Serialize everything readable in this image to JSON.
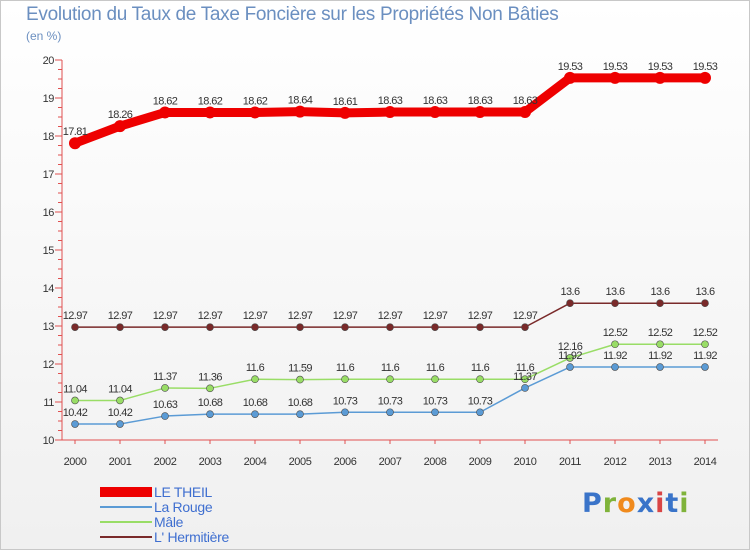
{
  "title": "Evolution du Taux de Taxe Foncière sur les Propriétés Non Bâties",
  "unit_label": "(en %)",
  "logo": {
    "text": "Proxiti",
    "letters": [
      "P",
      "r",
      "o",
      "x",
      "i",
      "t",
      "i"
    ],
    "colors": [
      "#3a74c9",
      "#7fb33a",
      "#f08a1c",
      "#3a74c9",
      "#d94545",
      "#3a74c9",
      "#7fb33a"
    ]
  },
  "chart_data": {
    "type": "line",
    "title": "Evolution du Taux de Taxe Foncière sur les Propriétés Non Bâties",
    "ylabel": "(en %)",
    "xlabel": "",
    "ylim": [
      10,
      20
    ],
    "yticks": [
      10,
      11,
      12,
      13,
      14,
      15,
      16,
      17,
      18,
      19,
      20
    ],
    "ytick_labels": [
      "10",
      "11",
      "12",
      "13",
      "14",
      "15",
      "16",
      "17",
      "18",
      "19",
      "20"
    ],
    "x": [
      "2000",
      "2001",
      "2002",
      "2003",
      "2004",
      "2005",
      "2006",
      "2007",
      "2008",
      "2009",
      "2010",
      "2011",
      "2012",
      "2013",
      "2014"
    ],
    "series": [
      {
        "name": "LE THEIL",
        "color": "#ee0000",
        "values": [
          17.81,
          18.26,
          18.62,
          18.62,
          18.62,
          18.64,
          18.61,
          18.63,
          18.63,
          18.63,
          18.63,
          19.53,
          19.53,
          19.53,
          19.53
        ],
        "labels": [
          "17.81",
          "18.26",
          "18.62",
          "18.62",
          "18.62",
          "18.64",
          "18.61",
          "18.63",
          "18.63",
          "18.63",
          "18.63",
          "19.53",
          "19.53",
          "19.53",
          "19.53"
        ]
      },
      {
        "name": "La Rouge",
        "color": "#5b9bd5",
        "values": [
          10.42,
          10.42,
          10.63,
          10.68,
          10.68,
          10.68,
          10.73,
          10.73,
          10.73,
          10.73,
          11.37,
          11.92,
          11.92,
          11.92,
          11.92
        ],
        "labels": [
          "10.42",
          "10.42",
          "10.63",
          "10.68",
          "10.68",
          "10.68",
          "10.73",
          "10.73",
          "10.73",
          "10.73",
          "11.37",
          "11.92",
          "11.92",
          "11.92",
          "11.92"
        ]
      },
      {
        "name": "Mâle",
        "color": "#99dd66",
        "values": [
          11.04,
          11.04,
          11.37,
          11.36,
          11.6,
          11.59,
          11.6,
          11.6,
          11.6,
          11.6,
          11.6,
          12.16,
          12.52,
          12.52,
          12.52
        ],
        "labels": [
          "11.04",
          "11.04",
          "11.37",
          "11.36",
          "11.6",
          "11.59",
          "11.6",
          "11.6",
          "11.6",
          "11.6",
          "11.6",
          "12.16",
          "12.52",
          "12.52",
          "12.52"
        ]
      },
      {
        "name": "L' Hermitière",
        "color": "#7a2a2a",
        "values": [
          12.97,
          12.97,
          12.97,
          12.97,
          12.97,
          12.97,
          12.97,
          12.97,
          12.97,
          12.97,
          12.97,
          13.6,
          13.6,
          13.6,
          13.6
        ],
        "labels": [
          "12.97",
          "12.97",
          "12.97",
          "12.97",
          "12.97",
          "12.97",
          "12.97",
          "12.97",
          "12.97",
          "12.97",
          "12.97",
          "13.6",
          "13.6",
          "13.6",
          "13.6"
        ]
      }
    ],
    "legend": [
      "LE THEIL",
      "La Rouge",
      "Mâle",
      "L' Hermitière"
    ],
    "legend_position": "bottom-left",
    "grid": false
  }
}
